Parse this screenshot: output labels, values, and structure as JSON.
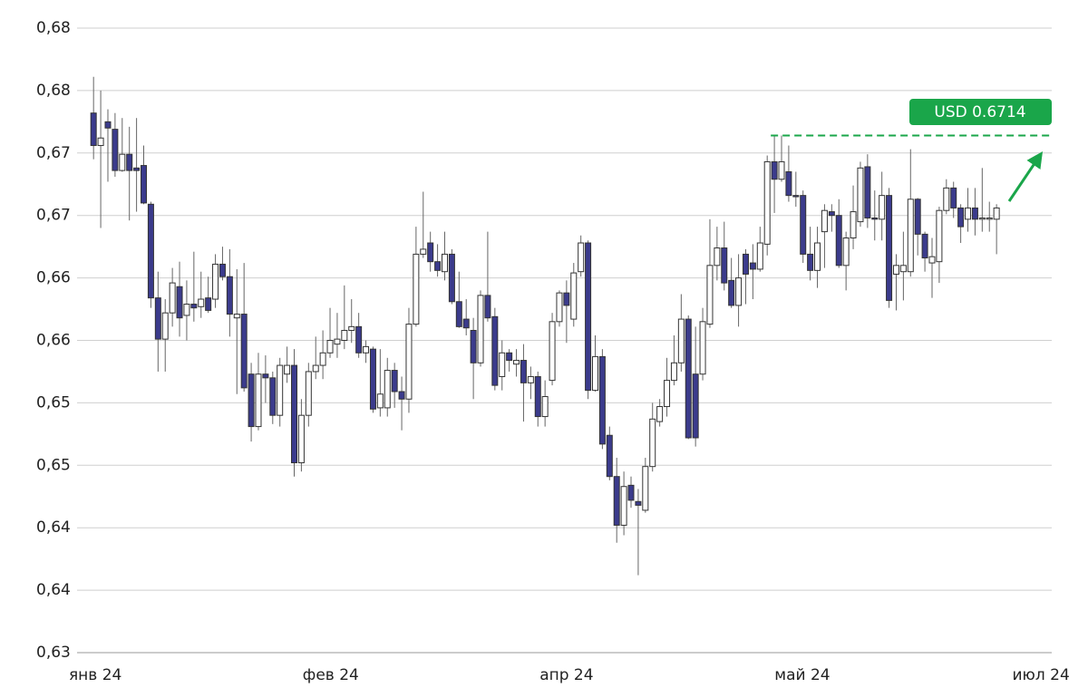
{
  "chart_data": {
    "type": "candlestick",
    "ylim": [
      0.63,
      0.68
    ],
    "yticks": [
      {
        "value": 0.63,
        "label": "0,63"
      },
      {
        "value": 0.635,
        "label": "0,64"
      },
      {
        "value": 0.64,
        "label": "0,64"
      },
      {
        "value": 0.645,
        "label": "0,65"
      },
      {
        "value": 0.65,
        "label": "0,65"
      },
      {
        "value": 0.655,
        "label": "0,66"
      },
      {
        "value": 0.66,
        "label": "0,66"
      },
      {
        "value": 0.665,
        "label": "0,67"
      },
      {
        "value": 0.67,
        "label": "0,67"
      },
      {
        "value": 0.675,
        "label": "0,68"
      },
      {
        "value": 0.68,
        "label": "0,68"
      }
    ],
    "xlim": [
      -2.3,
      133.7
    ],
    "xticks": [
      {
        "value": 0.25,
        "label": "янв 24"
      },
      {
        "value": 33.1,
        "label": "фев 24"
      },
      {
        "value": 66.0,
        "label": "апр 24"
      },
      {
        "value": 98.9,
        "label": "май 24"
      },
      {
        "value": 132.2,
        "label": "июл 24"
      }
    ],
    "grid": true,
    "up_color": "#ffffff",
    "down_color": "#3b3b8c",
    "open": [
      0.6732,
      0.6706,
      0.6725,
      0.6719,
      0.6686,
      0.6699,
      0.6688,
      0.669,
      0.6659,
      0.6584,
      0.6551,
      0.6572,
      0.6593,
      0.657,
      0.6579,
      0.6577,
      0.6584,
      0.6583,
      0.6611,
      0.6601,
      0.6568,
      0.6571,
      0.6523,
      0.6481,
      0.6523,
      0.652,
      0.649,
      0.6523,
      0.653,
      0.6452,
      0.649,
      0.6525,
      0.653,
      0.654,
      0.6547,
      0.655,
      0.6558,
      0.6561,
      0.654,
      0.6543,
      0.6496,
      0.6496,
      0.6526,
      0.6509,
      0.6503,
      0.6563,
      0.6619,
      0.6628,
      0.6613,
      0.6605,
      0.6619,
      0.6581,
      0.6567,
      0.6558,
      0.6532,
      0.6586,
      0.6569,
      0.6521,
      0.654,
      0.6531,
      0.6534,
      0.6516,
      0.6521,
      0.6489,
      0.6518,
      0.6565,
      0.6588,
      0.6567,
      0.6605,
      0.6628,
      0.651,
      0.6537,
      0.6474,
      0.6441,
      0.6402,
      0.6434,
      0.6421,
      0.6414,
      0.6449,
      0.6485,
      0.6497,
      0.6518,
      0.6532,
      0.6567,
      0.6523,
      0.6523,
      0.6563,
      0.661,
      0.6624,
      0.6598,
      0.6578,
      0.6619,
      0.6612,
      0.6607,
      0.6627,
      0.6693,
      0.6679,
      0.6685,
      0.6666,
      0.6666,
      0.6619,
      0.6606,
      0.6637,
      0.6653,
      0.665,
      0.661,
      0.6632,
      0.6645,
      0.6689,
      0.6648,
      0.6647,
      0.6666,
      0.6603,
      0.6605,
      0.6605,
      0.6663,
      0.6635,
      0.6612,
      0.6613,
      0.6654,
      0.6672,
      0.6656,
      0.6647,
      0.6656,
      0.6647,
      0.6647,
      0.6647
    ],
    "high": [
      0.6761,
      0.675,
      0.6735,
      0.6732,
      0.6728,
      0.6721,
      0.6728,
      0.6706,
      0.6661,
      0.6605,
      0.6583,
      0.6608,
      0.6613,
      0.6598,
      0.6621,
      0.6605,
      0.6601,
      0.6619,
      0.6625,
      0.6623,
      0.6607,
      0.6612,
      0.6532,
      0.654,
      0.6538,
      0.6525,
      0.6536,
      0.6545,
      0.6543,
      0.6503,
      0.6532,
      0.6553,
      0.6558,
      0.6576,
      0.6572,
      0.6594,
      0.6583,
      0.6572,
      0.655,
      0.6545,
      0.6543,
      0.6536,
      0.6532,
      0.6521,
      0.6576,
      0.6641,
      0.6669,
      0.6637,
      0.6627,
      0.6637,
      0.6623,
      0.6605,
      0.6583,
      0.6568,
      0.659,
      0.6637,
      0.6576,
      0.655,
      0.6543,
      0.6543,
      0.6547,
      0.6529,
      0.6525,
      0.6518,
      0.6572,
      0.659,
      0.6598,
      0.6612,
      0.6634,
      0.663,
      0.6554,
      0.6543,
      0.6481,
      0.6456,
      0.6445,
      0.6441,
      0.6431,
      0.6456,
      0.65,
      0.6503,
      0.6536,
      0.6554,
      0.6587,
      0.657,
      0.6561,
      0.6576,
      0.6647,
      0.6641,
      0.6645,
      0.6616,
      0.6619,
      0.6623,
      0.6627,
      0.6641,
      0.6698,
      0.6714,
      0.6714,
      0.6706,
      0.6685,
      0.667,
      0.6641,
      0.6641,
      0.6659,
      0.6659,
      0.6663,
      0.6637,
      0.6674,
      0.6693,
      0.6699,
      0.667,
      0.6685,
      0.6672,
      0.6619,
      0.6637,
      0.6703,
      0.6664,
      0.6637,
      0.6632,
      0.6657,
      0.6679,
      0.6677,
      0.6659,
      0.6672,
      0.6672,
      0.6688,
      0.6661,
      0.6659
    ],
    "low": [
      0.6695,
      0.664,
      0.6677,
      0.6681,
      0.6685,
      0.6646,
      0.6653,
      0.6659,
      0.6576,
      0.6525,
      0.6525,
      0.6561,
      0.6553,
      0.655,
      0.6565,
      0.6568,
      0.6572,
      0.6576,
      0.6598,
      0.6553,
      0.6507,
      0.6509,
      0.6469,
      0.6478,
      0.65,
      0.6483,
      0.6481,
      0.6516,
      0.6441,
      0.6445,
      0.6481,
      0.6519,
      0.6519,
      0.6536,
      0.6536,
      0.6543,
      0.6548,
      0.6536,
      0.6532,
      0.6492,
      0.6489,
      0.6489,
      0.6496,
      0.6478,
      0.6492,
      0.6561,
      0.6616,
      0.6605,
      0.6601,
      0.6598,
      0.6579,
      0.656,
      0.6554,
      0.6503,
      0.6529,
      0.6565,
      0.651,
      0.651,
      0.6525,
      0.6521,
      0.6485,
      0.6503,
      0.6481,
      0.6481,
      0.6514,
      0.6561,
      0.6548,
      0.6561,
      0.6601,
      0.6503,
      0.6509,
      0.6463,
      0.6438,
      0.6388,
      0.6394,
      0.6416,
      0.6362,
      0.6412,
      0.6445,
      0.6481,
      0.6489,
      0.6514,
      0.6525,
      0.6471,
      0.6465,
      0.6518,
      0.656,
      0.6598,
      0.659,
      0.6576,
      0.6561,
      0.6579,
      0.6583,
      0.6605,
      0.6618,
      0.6652,
      0.6677,
      0.6661,
      0.6657,
      0.6612,
      0.6598,
      0.6592,
      0.6608,
      0.6637,
      0.6608,
      0.659,
      0.6623,
      0.6641,
      0.664,
      0.663,
      0.663,
      0.6576,
      0.6574,
      0.6582,
      0.6601,
      0.6618,
      0.6605,
      0.6584,
      0.6596,
      0.6651,
      0.6648,
      0.6628,
      0.6637,
      0.6634,
      0.6637,
      0.6637,
      0.6619
    ],
    "close": [
      0.6706,
      0.6712,
      0.672,
      0.6686,
      0.6699,
      0.6686,
      0.6686,
      0.666,
      0.6584,
      0.6551,
      0.6572,
      0.6596,
      0.6568,
      0.6579,
      0.6576,
      0.6583,
      0.6574,
      0.6611,
      0.6601,
      0.6571,
      0.6571,
      0.6512,
      0.6481,
      0.6523,
      0.652,
      0.649,
      0.653,
      0.653,
      0.6452,
      0.649,
      0.6525,
      0.653,
      0.654,
      0.655,
      0.6551,
      0.6558,
      0.6561,
      0.654,
      0.6545,
      0.6495,
      0.6507,
      0.6526,
      0.6509,
      0.6503,
      0.6563,
      0.6619,
      0.6623,
      0.6613,
      0.6606,
      0.6619,
      0.6581,
      0.6561,
      0.656,
      0.6532,
      0.6586,
      0.6568,
      0.6514,
      0.654,
      0.6534,
      0.6534,
      0.6516,
      0.6521,
      0.6489,
      0.6505,
      0.6565,
      0.6588,
      0.6578,
      0.6604,
      0.6628,
      0.651,
      0.6537,
      0.6467,
      0.6441,
      0.6402,
      0.6433,
      0.6422,
      0.6418,
      0.6449,
      0.6487,
      0.6497,
      0.6518,
      0.6532,
      0.6567,
      0.6472,
      0.6472,
      0.6565,
      0.661,
      0.6624,
      0.6596,
      0.6578,
      0.66,
      0.6603,
      0.6607,
      0.6628,
      0.6693,
      0.6679,
      0.6693,
      0.6666,
      0.6665,
      0.6619,
      0.6606,
      0.6628,
      0.6654,
      0.665,
      0.661,
      0.6632,
      0.6653,
      0.6688,
      0.6648,
      0.6647,
      0.6666,
      0.6582,
      0.661,
      0.661,
      0.6663,
      0.6635,
      0.6616,
      0.6617,
      0.6654,
      0.6672,
      0.6656,
      0.6641,
      0.6656,
      0.6647,
      0.6648,
      0.6648,
      0.6656
    ],
    "annotation": {
      "text": "USD 0.6714",
      "value": 0.6714,
      "color": "#1aa64a"
    }
  }
}
